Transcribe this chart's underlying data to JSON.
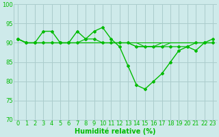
{
  "title": "",
  "xlabel": "Humidité relative (%)",
  "ylabel": "",
  "bg_color": "#ceeaea",
  "grid_color": "#aacccc",
  "line_color": "#00bb00",
  "ylim": [
    70,
    100
  ],
  "xlim": [
    -0.5,
    23.5
  ],
  "yticks": [
    70,
    75,
    80,
    85,
    90,
    95,
    100
  ],
  "xticks": [
    0,
    1,
    2,
    3,
    4,
    5,
    6,
    7,
    8,
    9,
    10,
    11,
    12,
    13,
    14,
    15,
    16,
    17,
    18,
    19,
    20,
    21,
    22,
    23
  ],
  "series": [
    [
      91,
      90,
      90,
      93,
      93,
      90,
      90,
      93,
      91,
      93,
      94,
      91,
      89,
      84,
      79,
      78,
      80,
      82,
      85,
      88,
      89,
      88,
      90,
      91
    ],
    [
      91,
      90,
      90,
      90,
      90,
      90,
      90,
      90,
      91,
      91,
      90,
      90,
      90,
      90,
      89,
      89,
      89,
      89,
      89,
      89,
      89,
      90,
      90,
      90
    ],
    [
      91,
      90,
      90,
      90,
      90,
      90,
      90,
      90,
      90,
      90,
      90,
      90,
      90,
      90,
      89,
      89,
      89,
      89,
      90,
      90,
      90,
      90,
      90,
      90
    ],
    [
      91,
      90,
      90,
      90,
      90,
      90,
      90,
      90,
      90,
      90,
      90,
      90,
      90,
      90,
      90,
      89,
      89,
      90,
      90,
      90,
      90,
      90,
      90,
      90
    ],
    [
      91,
      90,
      90,
      90,
      90,
      90,
      90,
      90,
      90,
      90,
      90,
      90,
      90,
      90,
      90,
      90,
      90,
      90,
      90,
      90,
      90,
      90,
      90,
      90
    ]
  ],
  "series_styles": [
    {
      "lw": 1.0,
      "marker": "D",
      "ms": 2.0,
      "zorder": 5,
      "dashed": false
    },
    {
      "lw": 0.9,
      "marker": "D",
      "ms": 2.0,
      "zorder": 4,
      "dashed": false
    },
    {
      "lw": 0.8,
      "marker": null,
      "ms": 0,
      "zorder": 3,
      "dashed": false
    },
    {
      "lw": 0.8,
      "marker": null,
      "ms": 0,
      "zorder": 3,
      "dashed": false
    },
    {
      "lw": 0.8,
      "marker": null,
      "ms": 0,
      "zorder": 3,
      "dashed": false
    }
  ],
  "xlabel_fontsize": 7,
  "tick_fontsize": 6,
  "axis_label_color": "#00bb00",
  "tick_color": "#00bb00"
}
